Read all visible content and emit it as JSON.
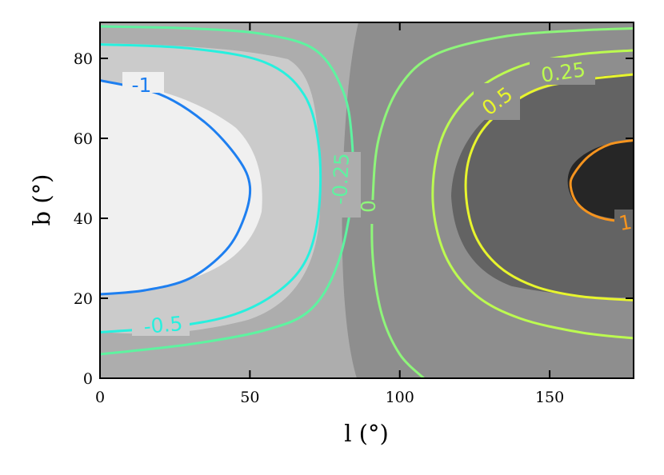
{
  "chart_data": {
    "type": "contour",
    "xlabel": "l (°)",
    "ylabel": "b (°)",
    "xlim": [
      0,
      178
    ],
    "ylim": [
      0,
      89
    ],
    "xticks": [
      0,
      50,
      100,
      150
    ],
    "xtick_labels": [
      "0",
      "50",
      "100",
      "150"
    ],
    "yticks": [
      0,
      20,
      40,
      60,
      80
    ],
    "ytick_labels": [
      "0",
      "20",
      "40",
      "60",
      "80"
    ],
    "grid": false,
    "filled_bands": [
      {
        "range": "< -1",
        "color": "#f0f0f0"
      },
      {
        "range": "-1 to -0.5",
        "color": "#cbcbcb"
      },
      {
        "range": "-0.5 to 0",
        "color": "#adadad"
      },
      {
        "range": "0 to 0.5",
        "color": "#8e8e8e"
      },
      {
        "range": "0.5 to 1",
        "color": "#636363"
      },
      {
        "range": "> 1",
        "color": "#262626"
      }
    ],
    "contour_lines": [
      {
        "level": "-1",
        "label": "-1",
        "color": "#1e7ff0",
        "points": [
          [
            0,
            74.5
          ],
          [
            20,
            71
          ],
          [
            35,
            64
          ],
          [
            46,
            55
          ],
          [
            50,
            48
          ],
          [
            48,
            40
          ],
          [
            42,
            32
          ],
          [
            30,
            25
          ],
          [
            15,
            22
          ],
          [
            0,
            21
          ]
        ]
      },
      {
        "level": "-0.5",
        "label": "-0.5",
        "color": "#27f0de",
        "points": [
          [
            0,
            83.5
          ],
          [
            30,
            82.5
          ],
          [
            55,
            79
          ],
          [
            68,
            71
          ],
          [
            73,
            58
          ],
          [
            73,
            42
          ],
          [
            69,
            30
          ],
          [
            60,
            22
          ],
          [
            45,
            16
          ],
          [
            25,
            13
          ],
          [
            0,
            11.5
          ]
        ]
      },
      {
        "level": "-0.25",
        "label": "-0.25",
        "color": "#5ef3a0",
        "points": [
          [
            0,
            88
          ],
          [
            30,
            87.5
          ],
          [
            55,
            86
          ],
          [
            72,
            82
          ],
          [
            81,
            72
          ],
          [
            84,
            60
          ],
          [
            84,
            45
          ],
          [
            79,
            28
          ],
          [
            70,
            17
          ],
          [
            55,
            12
          ],
          [
            30,
            8.5
          ],
          [
            0,
            6
          ]
        ]
      },
      {
        "level": "0",
        "label": "0",
        "color": "#8ef57a",
        "points": [
          [
            108,
            0
          ],
          [
            100,
            6
          ],
          [
            94,
            16
          ],
          [
            91,
            30
          ],
          [
            91,
            45
          ],
          [
            93,
            60
          ],
          [
            100,
            73
          ],
          [
            112,
            81
          ],
          [
            135,
            85.5
          ],
          [
            160,
            87
          ],
          [
            178,
            87.5
          ]
        ]
      },
      {
        "level": "0.25",
        "label": "0.25",
        "color": "#bcfb50",
        "points": [
          [
            178,
            10
          ],
          [
            160,
            11.5
          ],
          [
            140,
            15
          ],
          [
            125,
            21
          ],
          [
            115,
            31
          ],
          [
            111,
            45
          ],
          [
            114,
            60
          ],
          [
            124,
            71
          ],
          [
            140,
            78
          ],
          [
            160,
            81
          ],
          [
            178,
            82
          ]
        ]
      },
      {
        "level": "0.5",
        "label": "0.5",
        "color": "#e8f52d",
        "points": [
          [
            178,
            19.5
          ],
          [
            160,
            20.5
          ],
          [
            145,
            23
          ],
          [
            133,
            28
          ],
          [
            125,
            36
          ],
          [
            122,
            47
          ],
          [
            124,
            57
          ],
          [
            131,
            65
          ],
          [
            145,
            72
          ],
          [
            160,
            74.5
          ],
          [
            178,
            76
          ]
        ]
      },
      {
        "level": "1",
        "label": "1",
        "color": "#f5941f",
        "points": [
          [
            178,
            59.5
          ],
          [
            170,
            58.5
          ],
          [
            163,
            55.5
          ],
          [
            158,
            51
          ],
          [
            157,
            48
          ],
          [
            159,
            44
          ],
          [
            164,
            41
          ],
          [
            171,
            39.5
          ],
          [
            178,
            39.5
          ]
        ]
      }
    ],
    "contour_label_texts": [
      {
        "text": "-1",
        "level": "-1"
      },
      {
        "text": "-0.5",
        "level": "-0.5"
      },
      {
        "text": "-0.25",
        "level": "-0.25"
      },
      {
        "text": "0",
        "level": "0"
      },
      {
        "text": "0.25",
        "level": "0.25"
      },
      {
        "text": "0.5",
        "level": "0.5"
      },
      {
        "text": "1",
        "level": "1"
      }
    ]
  }
}
